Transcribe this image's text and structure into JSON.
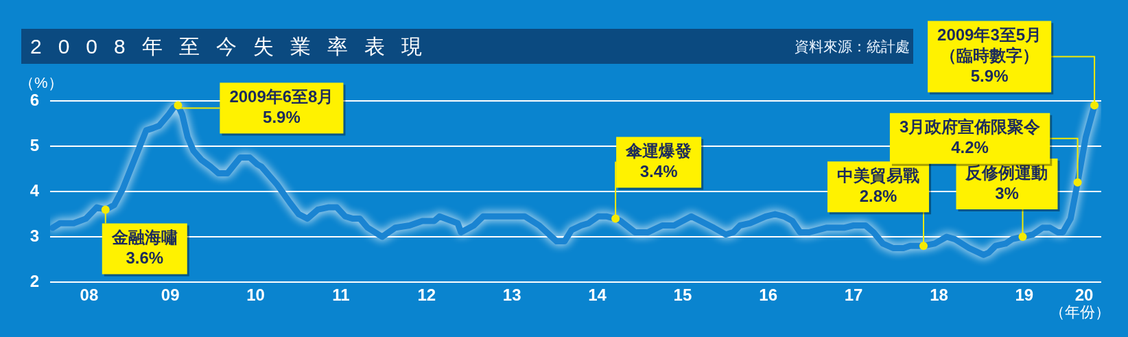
{
  "chart_data": {
    "type": "line",
    "title": "2008年至今失業率表現",
    "ylabel": "（%）",
    "xlabel": "（年份）",
    "xlim": [
      "2008-02-03",
      "2020-05-25"
    ],
    "xticks": [
      {
        "value": "2008-07-19",
        "label": "08"
      },
      {
        "value": "2009-07-01",
        "label": "09"
      },
      {
        "value": "2010-07-01",
        "label": "10"
      },
      {
        "value": "2011-07-01",
        "label": "11"
      },
      {
        "value": "2012-07-01",
        "label": "12"
      },
      {
        "value": "2013-07-01",
        "label": "13"
      },
      {
        "value": "2014-07-01",
        "label": "14"
      },
      {
        "value": "2015-07-01",
        "label": "15"
      },
      {
        "value": "2016-07-01",
        "label": "16"
      },
      {
        "value": "2017-07-01",
        "label": "17"
      },
      {
        "value": "2018-07-01",
        "label": "18"
      },
      {
        "value": "2019-07-01",
        "label": "19"
      },
      {
        "value": "2020-03-13",
        "label": "20"
      }
    ],
    "ylim": [
      2,
      6
    ],
    "yticks": [
      2,
      3,
      4,
      5,
      6
    ],
    "grid": "y",
    "legend": false,
    "marker": "none",
    "line_style": "solid",
    "series": [
      {
        "color": "#1a84d2",
        "x": [
          "2008-02-14",
          "2008-03-17",
          "2008-05-14",
          "2008-07-05",
          "2008-08-21",
          "2008-09-27",
          "2008-11-03",
          "2008-12-09",
          "2009-03-20",
          "2009-04-19",
          "2009-05-14",
          "2009-06-24",
          "2009-07-15",
          "2009-08-03",
          "2009-08-21",
          "2009-09-13",
          "2009-10-08",
          "2009-11-11",
          "2009-12-20",
          "2010-01-23",
          "2010-03-02",
          "2010-04-26",
          "2010-06-06",
          "2010-07-08",
          "2010-07-26",
          "2010-10-01",
          "2010-11-25",
          "2011-01-01",
          "2011-02-07",
          "2011-03-24",
          "2011-05-07",
          "2011-06-13",
          "2011-07-19",
          "2011-08-21",
          "2011-09-20",
          "2011-10-23",
          "2011-12-24",
          "2012-02-18",
          "2012-04-19",
          "2012-06-13",
          "2012-08-03",
          "2012-08-25",
          "2012-11-11",
          "2012-11-25",
          "2013-01-19",
          "2013-02-28",
          "2013-08-25",
          "2013-10-26",
          "2014-01-08",
          "2014-02-11",
          "2014-03-13",
          "2014-04-23",
          "2014-05-25",
          "2014-07-05",
          "2014-08-11",
          "2014-09-17",
          "2014-10-08",
          "2014-12-09",
          "2015-02-03",
          "2015-04-05",
          "2015-05-25",
          "2015-08-07",
          "2015-11-11",
          "2016-01-01",
          "2016-02-03",
          "2016-03-02",
          "2016-04-15",
          "2016-06-20",
          "2016-07-30",
          "2016-09-06",
          "2016-10-12",
          "2016-11-14",
          "2016-12-24",
          "2017-03-06",
          "2017-05-21",
          "2017-07-01",
          "2017-08-21",
          "2017-09-24",
          "2017-11-03",
          "2017-12-17",
          "2018-01-30",
          "2018-02-28",
          "2018-04-26",
          "2018-06-13",
          "2018-08-03",
          "2018-09-06",
          "2018-11-07",
          "2019-01-08",
          "2019-01-30",
          "2019-02-28",
          "2019-04-12",
          "2019-05-11",
          "2019-06-24",
          "2019-08-07",
          "2019-09-17",
          "2019-10-19",
          "2019-11-21",
          "2019-12-13",
          "2020-01-15",
          "2020-02-14",
          "2020-03-20",
          "2020-04-26"
        ],
        "values": [
          3.2,
          3.3,
          3.3,
          3.4,
          3.65,
          3.6,
          3.7,
          4.05,
          5.35,
          5.4,
          5.45,
          5.7,
          5.85,
          5.9,
          5.7,
          5.2,
          4.9,
          4.7,
          4.55,
          4.4,
          4.4,
          4.75,
          4.75,
          4.6,
          4.55,
          4.15,
          3.75,
          3.5,
          3.4,
          3.6,
          3.65,
          3.65,
          3.45,
          3.4,
          3.4,
          3.2,
          3.0,
          3.2,
          3.25,
          3.35,
          3.35,
          3.45,
          3.3,
          3.1,
          3.25,
          3.45,
          3.45,
          3.25,
          2.9,
          2.9,
          3.15,
          3.25,
          3.3,
          3.45,
          3.45,
          3.4,
          3.35,
          3.1,
          3.1,
          3.25,
          3.25,
          3.45,
          3.2,
          3.05,
          3.1,
          3.25,
          3.3,
          3.45,
          3.5,
          3.45,
          3.35,
          3.1,
          3.1,
          3.2,
          3.2,
          3.25,
          3.25,
          3.1,
          2.85,
          2.75,
          2.75,
          2.8,
          2.8,
          2.85,
          3.0,
          2.95,
          2.75,
          2.6,
          2.65,
          2.8,
          2.85,
          2.95,
          3.0,
          3.05,
          3.2,
          3.2,
          3.1,
          3.1,
          3.4,
          4.2,
          5.2,
          5.9
        ]
      }
    ],
    "annotations": [
      "資料來源：統計處",
      {
        "text": "金融海嘯\n3.6%",
        "x": "2008-09-27",
        "y": 3.6
      },
      {
        "text": "2009年6至8月\n5.9%",
        "x": "2009-08-03",
        "y": 5.9
      },
      {
        "text": "傘運爆發\n3.4%",
        "x": "2014-09-17",
        "y": 3.4
      },
      {
        "text": "中美貿易戰\n2.8%",
        "x": "2018-04-26",
        "y": 2.8
      },
      {
        "text": "反修例運動\n3%",
        "x": "2019-06-24",
        "y": 3.0
      },
      {
        "text": "3月政府宣佈限聚令\n4.2%",
        "x": "2020-02-14",
        "y": 4.2
      },
      {
        "text": "2009年3至5月（臨時數字）\n5.9%",
        "x": "2020-04-26",
        "y": 5.9
      }
    ]
  }
}
